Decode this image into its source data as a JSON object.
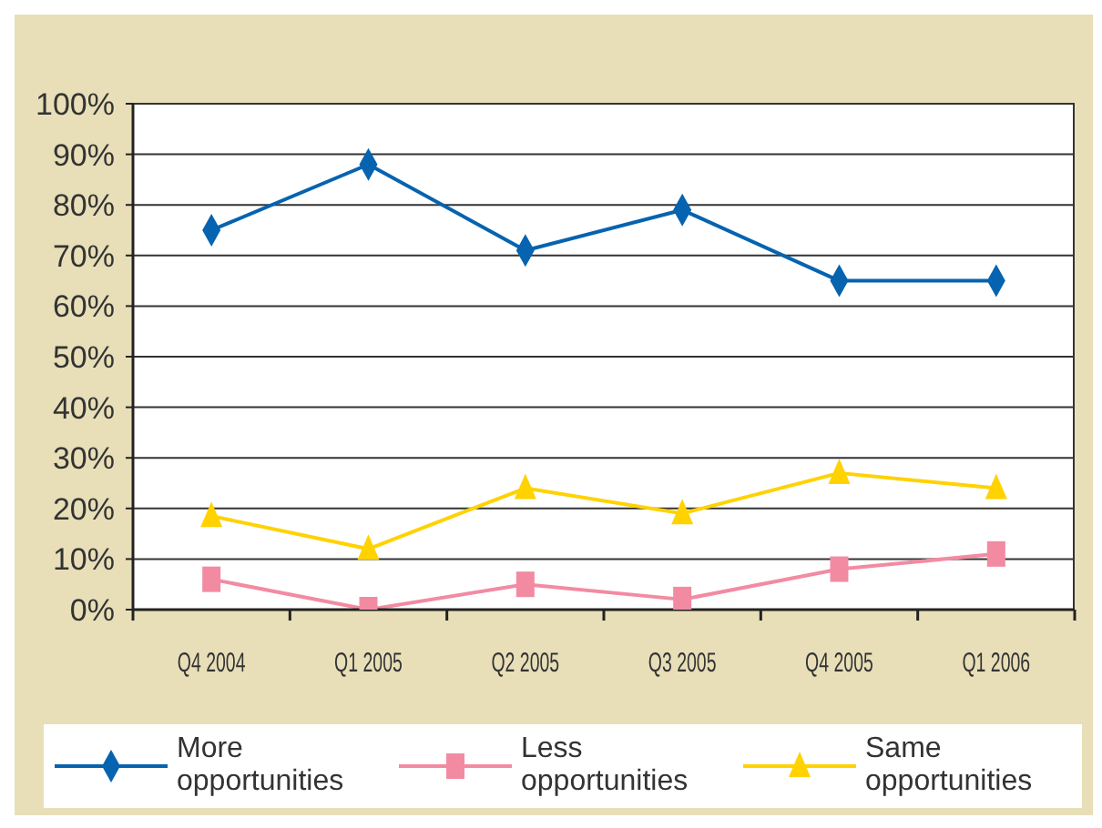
{
  "chart_data": {
    "type": "line",
    "categories": [
      "Q4 2004",
      "Q1 2005",
      "Q2 2005",
      "Q3 2005",
      "Q4 2005",
      "Q1 2006"
    ],
    "series": [
      {
        "name": "More opportunities",
        "color": "#0563b0",
        "marker": "diamond",
        "values": [
          75,
          88,
          71,
          79,
          65,
          65
        ]
      },
      {
        "name": "Less opportunities",
        "color": "#f28ba2",
        "marker": "square",
        "values": [
          6,
          0,
          5,
          2,
          8,
          11
        ]
      },
      {
        "name": "Same opportunities",
        "color": "#ffd200",
        "marker": "triangle",
        "values": [
          18.5,
          12,
          24,
          19,
          27,
          24
        ]
      }
    ],
    "ylim": [
      0,
      100
    ],
    "yticks": [
      {
        "value": 0,
        "label": "0%"
      },
      {
        "value": 10,
        "label": "10%"
      },
      {
        "value": 20,
        "label": "20%"
      },
      {
        "value": 30,
        "label": "30%"
      },
      {
        "value": 40,
        "label": "40%"
      },
      {
        "value": 50,
        "label": "50%"
      },
      {
        "value": 60,
        "label": "60%"
      },
      {
        "value": 70,
        "label": "70%"
      },
      {
        "value": 80,
        "label": "80%"
      },
      {
        "value": 90,
        "label": "90%"
      },
      {
        "value": 100,
        "label": "100%"
      }
    ],
    "grid": "y",
    "legend": "bottom",
    "line_style": "solid"
  }
}
